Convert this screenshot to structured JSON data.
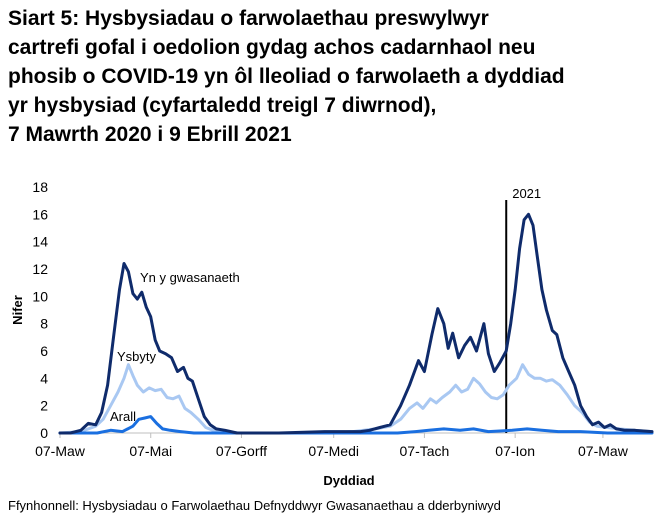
{
  "title_lines": [
    "Siart 5: Hysbysiadau o farwolaethau preswylwyr",
    "cartrefi gofal i oedolion gydag achos cadarnhaol neu",
    "phosib o COVID-19 yn ôl lleoliad o farwolaeth a dyddiad",
    "yr hysbysiad (cyfartaledd treigl 7 diwrnod),",
    "7 Mawrth 2020 i 9 Ebrill 2021"
  ],
  "source": "Ffynhonnell: Hysbysiadau o Farwolaethau Defnyddwyr Gwasanaethau a dderbyniwyd",
  "colors": {
    "care_home": "#0f2b6b",
    "hospital": "#a9c8f2",
    "other": "#1a6fe0",
    "marker": "#000000",
    "axis": "#bfbfbf"
  },
  "chart_data": {
    "type": "line",
    "xlabel": "Dyddiad",
    "ylabel": "Nifer",
    "ylim": [
      0,
      18
    ],
    "yticks": [
      0,
      2,
      4,
      6,
      8,
      10,
      12,
      14,
      16,
      18
    ],
    "xlim": [
      "2020-03-07",
      "2021-04-09"
    ],
    "xticks": [
      {
        "date": "2020-03-07",
        "label": "07-Maw"
      },
      {
        "date": "2020-05-07",
        "label": "07-Mai"
      },
      {
        "date": "2020-07-07",
        "label": "07-Gorff"
      },
      {
        "date": "2020-09-07",
        "label": "07-Medi"
      },
      {
        "date": "2020-11-07",
        "label": "07-Tach"
      },
      {
        "date": "2021-01-07",
        "label": "07-Ion"
      },
      {
        "date": "2021-03-07",
        "label": "07-Maw"
      }
    ],
    "marker": {
      "date": "2021-01-01",
      "label": "2021"
    },
    "series": [
      {
        "name": "Yn y gwasanaeth",
        "color_key": "care_home",
        "points": [
          [
            "2020-03-07",
            0
          ],
          [
            "2020-03-14",
            0
          ],
          [
            "2020-03-21",
            0.2
          ],
          [
            "2020-03-26",
            0.7
          ],
          [
            "2020-03-31",
            0.6
          ],
          [
            "2020-04-04",
            1.5
          ],
          [
            "2020-04-08",
            3.5
          ],
          [
            "2020-04-12",
            7
          ],
          [
            "2020-04-16",
            10.5
          ],
          [
            "2020-04-19",
            12.4
          ],
          [
            "2020-04-22",
            11.8
          ],
          [
            "2020-04-25",
            10.2
          ],
          [
            "2020-04-28",
            9.8
          ],
          [
            "2020-05-01",
            10.3
          ],
          [
            "2020-05-04",
            9.2
          ],
          [
            "2020-05-07",
            8.5
          ],
          [
            "2020-05-10",
            6.8
          ],
          [
            "2020-05-13",
            6.0
          ],
          [
            "2020-05-17",
            5.8
          ],
          [
            "2020-05-21",
            5.5
          ],
          [
            "2020-05-25",
            4.5
          ],
          [
            "2020-05-29",
            4.8
          ],
          [
            "2020-06-01",
            4.0
          ],
          [
            "2020-06-04",
            3.8
          ],
          [
            "2020-06-08",
            2.5
          ],
          [
            "2020-06-12",
            1.2
          ],
          [
            "2020-06-16",
            0.6
          ],
          [
            "2020-06-20",
            0.3
          ],
          [
            "2020-06-26",
            0.2
          ],
          [
            "2020-07-04",
            0
          ],
          [
            "2020-08-01",
            0
          ],
          [
            "2020-09-01",
            0.1
          ],
          [
            "2020-09-25",
            0.1
          ],
          [
            "2020-10-01",
            0.2
          ],
          [
            "2020-10-08",
            0.4
          ],
          [
            "2020-10-15",
            0.6
          ],
          [
            "2020-10-22",
            2.0
          ],
          [
            "2020-10-28",
            3.5
          ],
          [
            "2020-11-03",
            5.3
          ],
          [
            "2020-11-07",
            4.5
          ],
          [
            "2020-11-12",
            7.2
          ],
          [
            "2020-11-16",
            9.1
          ],
          [
            "2020-11-20",
            8.0
          ],
          [
            "2020-11-23",
            6.2
          ],
          [
            "2020-11-26",
            7.3
          ],
          [
            "2020-11-30",
            5.5
          ],
          [
            "2020-12-04",
            6.4
          ],
          [
            "2020-12-08",
            7.0
          ],
          [
            "2020-12-12",
            6.0
          ],
          [
            "2020-12-17",
            8.0
          ],
          [
            "2020-12-20",
            5.8
          ],
          [
            "2020-12-24",
            4.5
          ],
          [
            "2020-12-28",
            5.2
          ],
          [
            "2021-01-01",
            6.0
          ],
          [
            "2021-01-04",
            8.0
          ],
          [
            "2021-01-07",
            10.5
          ],
          [
            "2021-01-10",
            13.5
          ],
          [
            "2021-01-13",
            15.6
          ],
          [
            "2021-01-16",
            16.0
          ],
          [
            "2021-01-19",
            15.2
          ],
          [
            "2021-01-22",
            12.8
          ],
          [
            "2021-01-25",
            10.5
          ],
          [
            "2021-01-28",
            9.0
          ],
          [
            "2021-02-01",
            7.5
          ],
          [
            "2021-02-04",
            7.2
          ],
          [
            "2021-02-08",
            5.5
          ],
          [
            "2021-02-12",
            4.5
          ],
          [
            "2021-02-16",
            3.5
          ],
          [
            "2021-02-20",
            2.0
          ],
          [
            "2021-02-24",
            1.2
          ],
          [
            "2021-02-28",
            0.6
          ],
          [
            "2021-03-04",
            0.8
          ],
          [
            "2021-03-08",
            0.4
          ],
          [
            "2021-03-12",
            0.6
          ],
          [
            "2021-03-16",
            0.3
          ],
          [
            "2021-03-22",
            0.2
          ],
          [
            "2021-03-28",
            0.2
          ],
          [
            "2021-04-09",
            0.1
          ]
        ]
      },
      {
        "name": "Ysbyty",
        "color_key": "hospital",
        "points": [
          [
            "2020-03-07",
            0
          ],
          [
            "2020-03-21",
            0.1
          ],
          [
            "2020-03-31",
            0.5
          ],
          [
            "2020-04-05",
            1.0
          ],
          [
            "2020-04-10",
            2.0
          ],
          [
            "2020-04-15",
            3.0
          ],
          [
            "2020-04-19",
            4.0
          ],
          [
            "2020-04-22",
            5.0
          ],
          [
            "2020-04-25",
            4.2
          ],
          [
            "2020-04-28",
            3.5
          ],
          [
            "2020-05-02",
            3.0
          ],
          [
            "2020-05-06",
            3.3
          ],
          [
            "2020-05-10",
            3.1
          ],
          [
            "2020-05-14",
            3.2
          ],
          [
            "2020-05-18",
            2.6
          ],
          [
            "2020-05-22",
            2.5
          ],
          [
            "2020-05-26",
            2.7
          ],
          [
            "2020-05-30",
            1.8
          ],
          [
            "2020-06-03",
            1.5
          ],
          [
            "2020-06-08",
            1.0
          ],
          [
            "2020-06-13",
            0.4
          ],
          [
            "2020-06-18",
            0.2
          ],
          [
            "2020-06-26",
            0.1
          ],
          [
            "2020-07-05",
            0
          ],
          [
            "2020-09-01",
            0
          ],
          [
            "2020-09-20",
            0.1
          ],
          [
            "2020-10-05",
            0.3
          ],
          [
            "2020-10-15",
            0.5
          ],
          [
            "2020-10-22",
            1.0
          ],
          [
            "2020-10-28",
            1.8
          ],
          [
            "2020-11-02",
            2.2
          ],
          [
            "2020-11-06",
            1.8
          ],
          [
            "2020-11-11",
            2.5
          ],
          [
            "2020-11-15",
            2.2
          ],
          [
            "2020-11-19",
            2.6
          ],
          [
            "2020-11-24",
            3.0
          ],
          [
            "2020-11-28",
            3.5
          ],
          [
            "2020-12-02",
            3.0
          ],
          [
            "2020-12-06",
            3.2
          ],
          [
            "2020-12-10",
            4.0
          ],
          [
            "2020-12-14",
            3.6
          ],
          [
            "2020-12-18",
            3.0
          ],
          [
            "2020-12-22",
            2.6
          ],
          [
            "2020-12-26",
            2.5
          ],
          [
            "2020-12-30",
            2.8
          ],
          [
            "2021-01-03",
            3.5
          ],
          [
            "2021-01-08",
            4.0
          ],
          [
            "2021-01-12",
            5.0
          ],
          [
            "2021-01-16",
            4.3
          ],
          [
            "2021-01-20",
            4.0
          ],
          [
            "2021-01-24",
            4.0
          ],
          [
            "2021-01-28",
            3.8
          ],
          [
            "2021-02-01",
            3.9
          ],
          [
            "2021-02-06",
            3.5
          ],
          [
            "2021-02-11",
            2.8
          ],
          [
            "2021-02-16",
            2.0
          ],
          [
            "2021-02-21",
            1.5
          ],
          [
            "2021-02-26",
            0.8
          ],
          [
            "2021-03-03",
            0.5
          ],
          [
            "2021-03-10",
            0.4
          ],
          [
            "2021-03-18",
            0.3
          ],
          [
            "2021-03-28",
            0.2
          ],
          [
            "2021-04-09",
            0.1
          ]
        ]
      },
      {
        "name": "Arall",
        "color_key": "other",
        "points": [
          [
            "2020-03-07",
            0
          ],
          [
            "2020-04-01",
            0
          ],
          [
            "2020-04-10",
            0.2
          ],
          [
            "2020-04-18",
            0.1
          ],
          [
            "2020-04-25",
            0.5
          ],
          [
            "2020-04-29",
            1.0
          ],
          [
            "2020-05-03",
            1.1
          ],
          [
            "2020-05-07",
            1.2
          ],
          [
            "2020-05-11",
            0.7
          ],
          [
            "2020-05-15",
            0.3
          ],
          [
            "2020-05-20",
            0.2
          ],
          [
            "2020-05-27",
            0.1
          ],
          [
            "2020-06-05",
            0
          ],
          [
            "2020-10-20",
            0
          ],
          [
            "2020-11-01",
            0.1
          ],
          [
            "2020-11-10",
            0.2
          ],
          [
            "2020-11-20",
            0.3
          ],
          [
            "2020-12-01",
            0.2
          ],
          [
            "2020-12-10",
            0.3
          ],
          [
            "2020-12-20",
            0.1
          ],
          [
            "2021-01-05",
            0.2
          ],
          [
            "2021-01-15",
            0.3
          ],
          [
            "2021-01-25",
            0.2
          ],
          [
            "2021-02-05",
            0.1
          ],
          [
            "2021-02-20",
            0.1
          ],
          [
            "2021-03-10",
            0
          ],
          [
            "2021-04-09",
            0
          ]
        ]
      }
    ]
  }
}
